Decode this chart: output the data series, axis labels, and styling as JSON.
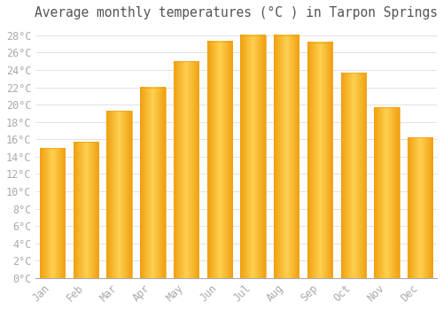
{
  "title": "Average monthly temperatures (°C ) in Tarpon Springs",
  "months": [
    "Jan",
    "Feb",
    "Mar",
    "Apr",
    "May",
    "Jun",
    "Jul",
    "Aug",
    "Sep",
    "Oct",
    "Nov",
    "Dec"
  ],
  "values": [
    15.0,
    15.7,
    19.3,
    22.0,
    25.0,
    27.3,
    28.0,
    28.0,
    27.2,
    23.7,
    19.7,
    16.2
  ],
  "bar_color_center": "#FFD050",
  "bar_color_edge": "#F0A010",
  "background_color": "#FFFFFF",
  "plot_bg_color": "#FFFFFF",
  "grid_color": "#DDDDDD",
  "ylim": [
    0,
    29
  ],
  "yticks": [
    0,
    2,
    4,
    6,
    8,
    10,
    12,
    14,
    16,
    18,
    20,
    22,
    24,
    26,
    28
  ],
  "ytick_step": 2,
  "title_fontsize": 10.5,
  "tick_fontsize": 8.5,
  "tick_color": "#AAAAAA",
  "tick_font": "monospace"
}
